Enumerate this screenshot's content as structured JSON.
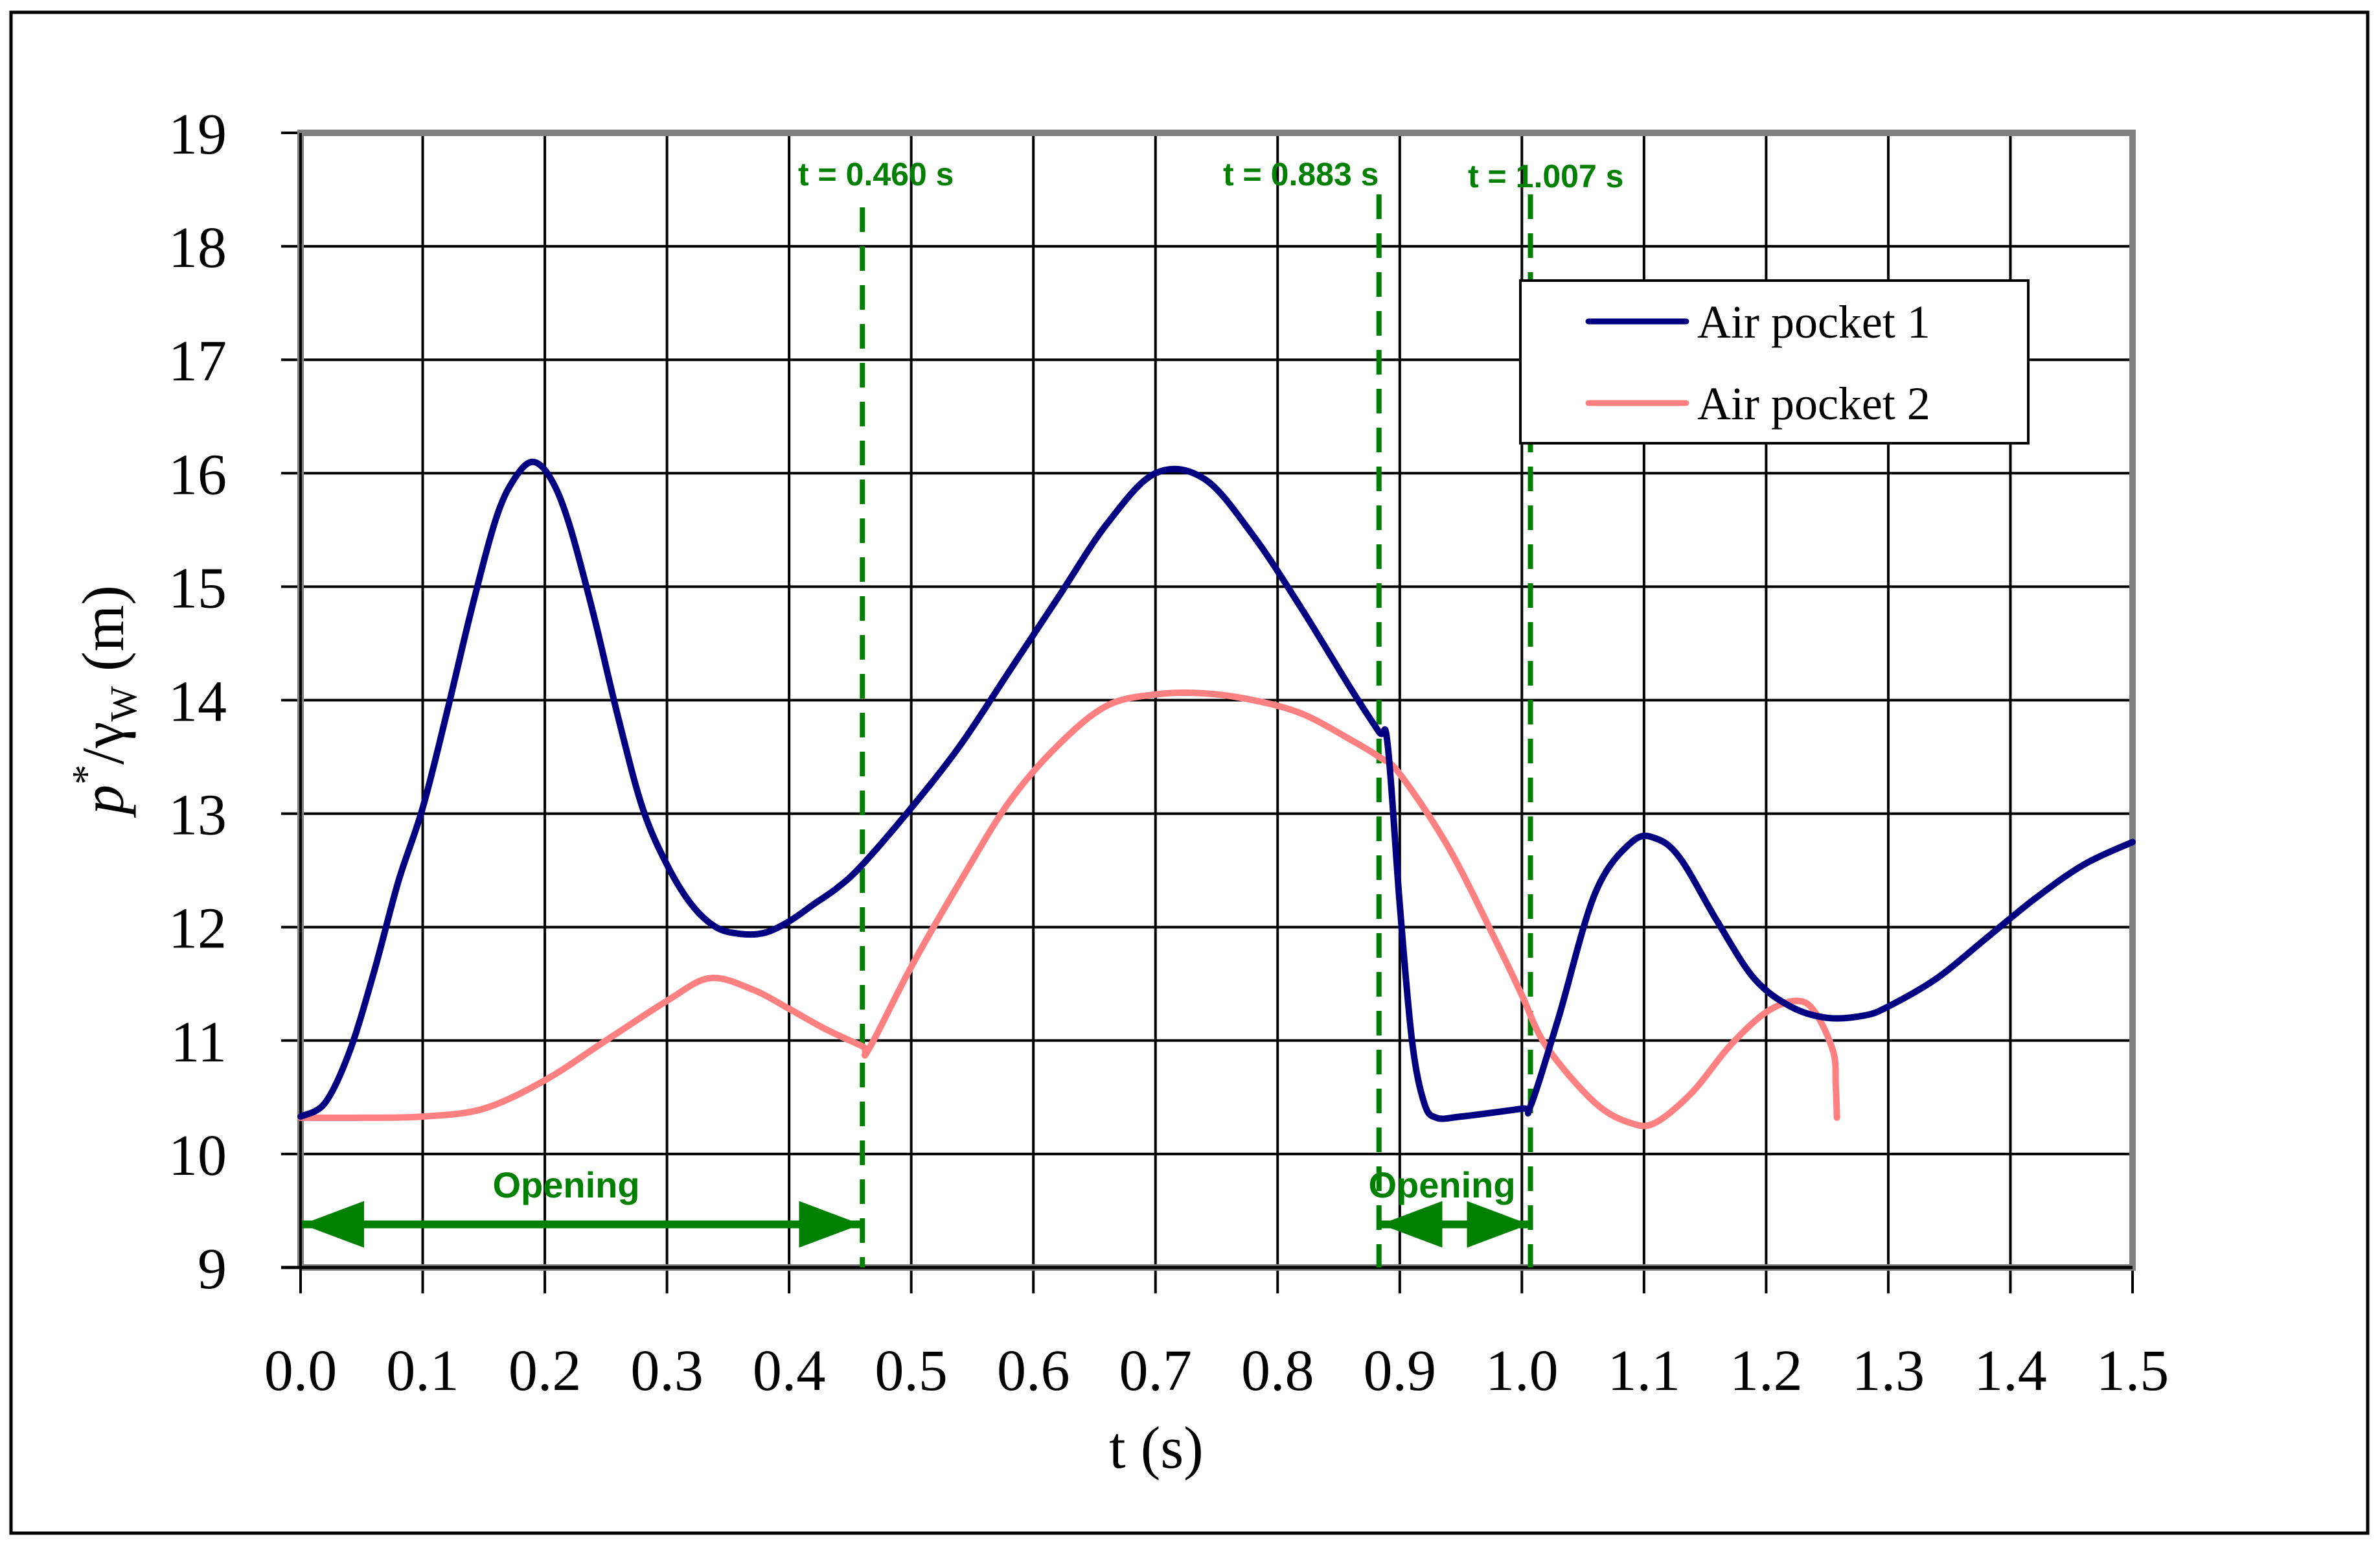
{
  "chart_data": {
    "type": "line",
    "title": "",
    "xlabel": "t (s)",
    "ylabel": "p*/γw (m)",
    "ylabel_parts": {
      "main": "p",
      "sup": "*",
      "slash": "/γ",
      "sub": "W",
      "unit": " (m)"
    },
    "xlim": [
      0.0,
      1.5
    ],
    "ylim": [
      9,
      19
    ],
    "grid": true,
    "legend_position": "upper right",
    "x_ticks": [
      "0.0",
      "0.1",
      "0.2",
      "0.3",
      "0.4",
      "0.5",
      "0.6",
      "0.7",
      "0.8",
      "0.9",
      "1.0",
      "1.1",
      "1.2",
      "1.3",
      "1.4",
      "1.5"
    ],
    "y_ticks": [
      "9",
      "10",
      "11",
      "12",
      "13",
      "14",
      "15",
      "16",
      "17",
      "18",
      "19"
    ],
    "series": [
      {
        "name": "Air pocket 1",
        "color": "#000080",
        "x": [
          0.0,
          0.02,
          0.04,
          0.06,
          0.08,
          0.1,
          0.12,
          0.14,
          0.16,
          0.175,
          0.19,
          0.205,
          0.22,
          0.24,
          0.26,
          0.28,
          0.3,
          0.32,
          0.34,
          0.36,
          0.38,
          0.4,
          0.42,
          0.44,
          0.46,
          0.5,
          0.54,
          0.58,
          0.62,
          0.66,
          0.7,
          0.74,
          0.78,
          0.82,
          0.86,
          0.883,
          0.89,
          0.9,
          0.91,
          0.92,
          0.93,
          0.95,
          1.0,
          1.007,
          1.03,
          1.06,
          1.09,
          1.11,
          1.13,
          1.16,
          1.19,
          1.22,
          1.25,
          1.28,
          1.3,
          1.34,
          1.38,
          1.42,
          1.46,
          1.5
        ],
        "y": [
          10.33,
          10.45,
          10.9,
          11.6,
          12.4,
          13.05,
          13.9,
          14.8,
          15.6,
          15.95,
          16.1,
          15.95,
          15.55,
          14.75,
          13.85,
          13.05,
          12.55,
          12.2,
          12.0,
          11.94,
          11.95,
          12.05,
          12.2,
          12.35,
          12.55,
          13.05,
          13.6,
          14.25,
          14.9,
          15.55,
          16.0,
          15.95,
          15.45,
          14.8,
          14.1,
          13.72,
          13.62,
          12.2,
          11.0,
          10.45,
          10.32,
          10.33,
          10.4,
          10.42,
          11.2,
          12.3,
          12.75,
          12.78,
          12.6,
          12.05,
          11.55,
          11.3,
          11.2,
          11.22,
          11.3,
          11.55,
          11.9,
          12.25,
          12.55,
          12.75
        ]
      },
      {
        "name": "Air pocket 2",
        "color": "#FF8080",
        "x": [
          0.0,
          0.05,
          0.1,
          0.15,
          0.2,
          0.25,
          0.3,
          0.335,
          0.37,
          0.4,
          0.43,
          0.46,
          0.465,
          0.5,
          0.54,
          0.58,
          0.62,
          0.66,
          0.7,
          0.74,
          0.78,
          0.82,
          0.86,
          0.883,
          0.9,
          0.94,
          0.98,
          1.0,
          1.02,
          1.06,
          1.09,
          1.11,
          1.14,
          1.17,
          1.2,
          1.225,
          1.24,
          1.255,
          1.257,
          1.258
        ],
        "y": [
          10.32,
          10.32,
          10.33,
          10.4,
          10.65,
          11.0,
          11.35,
          11.55,
          11.45,
          11.28,
          11.1,
          10.95,
          10.92,
          11.65,
          12.4,
          13.1,
          13.6,
          13.95,
          14.05,
          14.06,
          14.0,
          13.88,
          13.65,
          13.5,
          13.35,
          12.7,
          11.85,
          11.4,
          10.95,
          10.45,
          10.27,
          10.28,
          10.55,
          10.95,
          11.25,
          11.35,
          11.25,
          10.9,
          10.6,
          10.32
        ]
      }
    ],
    "annotations": {
      "vlines": [
        {
          "x": 0.46,
          "label": "t = 0.460 s",
          "style": "dashed",
          "color": "#008000"
        },
        {
          "x": 0.883,
          "label": "t = 0.883 s",
          "style": "dashed",
          "color": "#008000"
        },
        {
          "x": 1.007,
          "label": "t = 1.007 s",
          "style": "dashed",
          "color": "#008000"
        }
      ],
      "arrows": [
        {
          "x_start": 0.0,
          "x_end": 0.46,
          "y": 9.38,
          "label": "Opening",
          "color": "#008000"
        },
        {
          "x_start": 0.883,
          "x_end": 1.007,
          "y": 9.38,
          "label": "Opening",
          "color": "#008000"
        }
      ]
    }
  },
  "legend": {
    "items": [
      {
        "label": "Air pocket 1",
        "color": "#000080"
      },
      {
        "label": "Air pocket 2",
        "color": "#FF8080"
      }
    ]
  },
  "axes": {
    "x_title": "t (s)"
  }
}
